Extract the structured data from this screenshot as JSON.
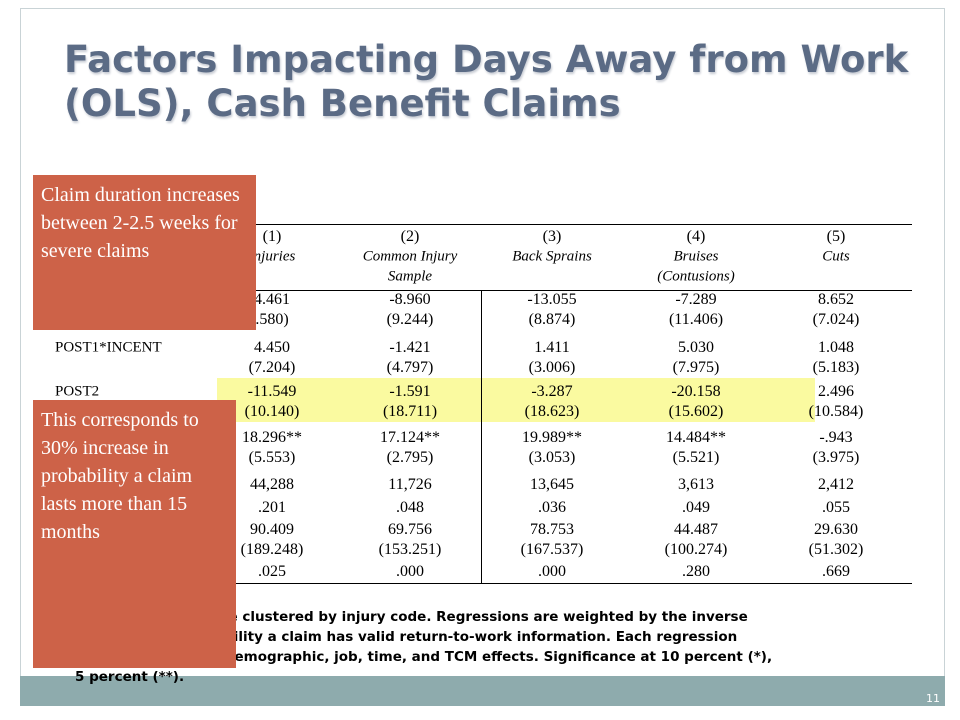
{
  "title": [
    "Factors Impacting Days Away from Work",
    "(OLS), Cash Benefit Claims"
  ],
  "table": {
    "header": {
      "numbers": [
        "(1)",
        "(2)",
        "(3)",
        "(4)",
        "(5)"
      ],
      "names": [
        [
          "Injuries"
        ],
        [
          "Common Injury",
          "Sample"
        ],
        [
          "Back Sprains"
        ],
        [
          "Bruises",
          "(Contusions)"
        ],
        [
          "Cuts"
        ]
      ]
    },
    "rows": [
      {
        "values": [
          "4.461",
          "-8.960",
          "-13.055",
          "-7.289",
          "8.652"
        ],
        "ses": [
          ".580)",
          "(9.244)",
          "(8.874)",
          "(11.406)",
          "(7.024)"
        ]
      },
      {
        "label": "POST1*INCENT",
        "values": [
          "4.450",
          "-1.421",
          "1.411",
          "5.030",
          "1.048"
        ],
        "ses": [
          "(7.204)",
          "(4.797)",
          "(3.006)",
          "(7.975)",
          "(5.183)"
        ]
      },
      {
        "label": "POST2",
        "highlighted": true,
        "values": [
          "-11.549",
          "-1.591",
          "-3.287",
          "-20.158",
          "2.496"
        ],
        "ses": [
          "(10.140)",
          "(18.711)",
          "(18.623)",
          "(15.602)",
          "(10.584)"
        ]
      },
      {
        "values": [
          "18.296**",
          "17.124**",
          "19.989**",
          "14.484**",
          "-.943"
        ],
        "ses": [
          "(5.553)",
          "(2.795)",
          "(3.053)",
          "(5.521)",
          "(3.975)"
        ]
      },
      {
        "values": [
          "44,288",
          "11,726",
          "13,645",
          "3,613",
          "2,412"
        ]
      },
      {
        "values": [
          ".201",
          ".048",
          ".036",
          ".049",
          ".055"
        ]
      },
      {
        "values": [
          "90.409",
          "69.756",
          "78.753",
          "44.487",
          "29.630"
        ],
        "ses": [
          "(189.248)",
          "(153.251)",
          "(167.537)",
          "(100.274)",
          "(51.302)"
        ]
      },
      {
        "values": [
          ".025",
          ".000",
          ".000",
          ".280",
          ".669"
        ]
      }
    ]
  },
  "notes": [
    "s are clustered by injury code.  Regressions are weighted by the inverse",
    "ability a claim has valid return-to-work information.  Each regression",
    ", demographic, job, time, and TCM effects. Significance at 10 percent (*),",
    "5 percent (**)."
  ],
  "callouts": [
    "Claim duration increases between 2-2.5 weeks for severe claims",
    "This corresponds to 30% increase in probability a claim lasts more than 15 months"
  ],
  "page_number": "11"
}
